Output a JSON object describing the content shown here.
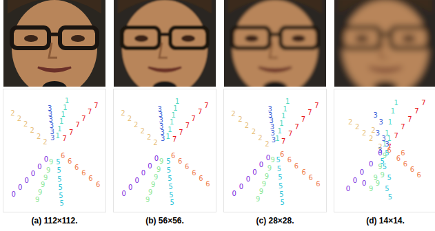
{
  "chart_data": [
    {
      "type": "scatter",
      "caption": "(a) 112×112.",
      "xlim": [
        -1.1,
        1.1
      ],
      "ylim": [
        -1.1,
        1.1
      ],
      "tick_labels": false,
      "grid": false,
      "marker": "text",
      "series": [
        {
          "name": "7",
          "color": "#e8141c",
          "x": [
            0.22,
            0.36,
            0.5,
            0.63,
            0.76,
            0.9
          ],
          "y": [
            0.2,
            0.32,
            0.45,
            0.56,
            0.68,
            0.8
          ]
        },
        {
          "name": "1",
          "color": "#4fd8c0",
          "x": [
            0.07,
            0.11,
            0.15,
            0.19,
            0.23,
            0.27
          ],
          "y": [
            0.25,
            0.38,
            0.51,
            0.64,
            0.76,
            0.88
          ]
        },
        {
          "name": "3",
          "color": "#3a5fd8",
          "x": [
            -0.04,
            -0.05,
            -0.06,
            -0.08,
            -0.09,
            -0.1
          ],
          "y": [
            0.22,
            0.33,
            0.44,
            0.55,
            0.65,
            0.75
          ]
        },
        {
          "name": "2",
          "color": "#e8c07a",
          "x": [
            -0.2,
            -0.34,
            -0.48,
            -0.62,
            -0.76,
            -0.9
          ],
          "y": [
            0.14,
            0.24,
            0.35,
            0.46,
            0.56,
            0.66
          ]
        },
        {
          "name": "0",
          "color": "#7a2be0",
          "x": [
            -0.18,
            -0.32,
            -0.46,
            -0.6,
            -0.74,
            -0.88
          ],
          "y": [
            -0.17,
            -0.3,
            -0.43,
            -0.55,
            -0.67,
            -0.8
          ]
        },
        {
          "name": "9",
          "color": "#8ee89a",
          "x": [
            -0.07,
            -0.13,
            -0.19,
            -0.25,
            -0.31,
            -0.37
          ],
          "y": [
            -0.22,
            -0.36,
            -0.5,
            -0.63,
            -0.76,
            -0.9
          ]
        },
        {
          "name": "5",
          "color": "#2ec4d8",
          "x": [
            0.08,
            0.1,
            0.11,
            0.13,
            0.14,
            0.16
          ],
          "y": [
            -0.22,
            -0.37,
            -0.52,
            -0.67,
            -0.82,
            -0.96
          ]
        },
        {
          "name": "6",
          "color": "#f08050",
          "x": [
            0.18,
            0.33,
            0.48,
            0.63,
            0.78,
            0.94
          ],
          "y": [
            -0.1,
            -0.2,
            -0.31,
            -0.41,
            -0.51,
            -0.62
          ]
        }
      ]
    },
    {
      "type": "scatter",
      "caption": "(b) 56×56.",
      "xlim": [
        -1.1,
        1.1
      ],
      "ylim": [
        -1.1,
        1.1
      ],
      "tick_labels": false,
      "grid": false,
      "marker": "text",
      "series": [
        {
          "name": "7",
          "color": "#e8141c",
          "x": [
            0.21,
            0.35,
            0.49,
            0.62,
            0.76,
            0.9
          ],
          "y": [
            0.19,
            0.31,
            0.44,
            0.56,
            0.68,
            0.8
          ]
        },
        {
          "name": "1",
          "color": "#4fd8c0",
          "x": [
            0.07,
            0.11,
            0.15,
            0.19,
            0.23,
            0.27
          ],
          "y": [
            0.24,
            0.37,
            0.5,
            0.63,
            0.75,
            0.87
          ]
        },
        {
          "name": "3",
          "color": "#3a5fd8",
          "x": [
            -0.04,
            -0.05,
            -0.07,
            -0.08,
            -0.09,
            -0.11
          ],
          "y": [
            0.21,
            0.32,
            0.43,
            0.54,
            0.64,
            0.74
          ]
        },
        {
          "name": "2",
          "color": "#e8c07a",
          "x": [
            -0.2,
            -0.34,
            -0.48,
            -0.62,
            -0.76,
            -0.9
          ],
          "y": [
            0.13,
            0.23,
            0.34,
            0.45,
            0.56,
            0.66
          ]
        },
        {
          "name": "0",
          "color": "#7a2be0",
          "x": [
            -0.18,
            -0.32,
            -0.46,
            -0.6,
            -0.74,
            -0.88
          ],
          "y": [
            -0.16,
            -0.29,
            -0.42,
            -0.55,
            -0.67,
            -0.79
          ]
        },
        {
          "name": "9",
          "color": "#8ee89a",
          "x": [
            -0.07,
            -0.13,
            -0.19,
            -0.25,
            -0.31,
            -0.37
          ],
          "y": [
            -0.21,
            -0.35,
            -0.49,
            -0.63,
            -0.76,
            -0.89
          ]
        },
        {
          "name": "5",
          "color": "#2ec4d8",
          "x": [
            0.08,
            0.09,
            0.11,
            0.13,
            0.14,
            0.16
          ],
          "y": [
            -0.21,
            -0.36,
            -0.51,
            -0.66,
            -0.81,
            -0.95
          ]
        },
        {
          "name": "6",
          "color": "#f08050",
          "x": [
            0.18,
            0.33,
            0.48,
            0.63,
            0.78,
            0.93
          ],
          "y": [
            -0.1,
            -0.2,
            -0.3,
            -0.41,
            -0.51,
            -0.61
          ]
        }
      ]
    },
    {
      "type": "scatter",
      "caption": "(c) 28×28.",
      "xlim": [
        -1.1,
        1.1
      ],
      "ylim": [
        -1.1,
        1.1
      ],
      "tick_labels": false,
      "grid": false,
      "marker": "text",
      "series": [
        {
          "name": "7",
          "color": "#e8141c",
          "x": [
            0.18,
            0.33,
            0.47,
            0.61,
            0.75,
            0.9
          ],
          "y": [
            0.16,
            0.29,
            0.42,
            0.55,
            0.67,
            0.8
          ]
        },
        {
          "name": "1",
          "color": "#4fd8c0",
          "x": [
            0.05,
            0.1,
            0.14,
            0.18,
            0.22,
            0.27
          ],
          "y": [
            0.2,
            0.34,
            0.48,
            0.61,
            0.74,
            0.87
          ]
        },
        {
          "name": "3",
          "color": "#3a5fd8",
          "x": [
            -0.03,
            -0.05,
            -0.06,
            -0.08,
            -0.1,
            -0.11
          ],
          "y": [
            0.18,
            0.3,
            0.41,
            0.52,
            0.63,
            0.73
          ]
        },
        {
          "name": "2",
          "color": "#e8c07a",
          "x": [
            -0.17,
            -0.32,
            -0.46,
            -0.61,
            -0.75,
            -0.9
          ],
          "y": [
            0.11,
            0.22,
            0.33,
            0.44,
            0.55,
            0.65
          ]
        },
        {
          "name": "0",
          "color": "#7a2be0",
          "x": [
            -0.15,
            -0.3,
            -0.44,
            -0.58,
            -0.73,
            -0.88
          ],
          "y": [
            -0.14,
            -0.27,
            -0.4,
            -0.53,
            -0.66,
            -0.79
          ]
        },
        {
          "name": "9",
          "color": "#8ee89a",
          "x": [
            -0.05,
            -0.12,
            -0.18,
            -0.24,
            -0.3,
            -0.37
          ],
          "y": [
            -0.18,
            -0.33,
            -0.47,
            -0.61,
            -0.75,
            -0.88
          ]
        },
        {
          "name": "5",
          "color": "#2ec4d8",
          "x": [
            0.07,
            0.09,
            0.11,
            0.12,
            0.14,
            0.16
          ],
          "y": [
            -0.18,
            -0.34,
            -0.49,
            -0.65,
            -0.8,
            -0.95
          ]
        },
        {
          "name": "6",
          "color": "#f08050",
          "x": [
            0.15,
            0.31,
            0.46,
            0.62,
            0.77,
            0.93
          ],
          "y": [
            -0.08,
            -0.18,
            -0.29,
            -0.4,
            -0.5,
            -0.61
          ]
        }
      ]
    },
    {
      "type": "scatter",
      "caption": "(d) 14×14.",
      "xlim": [
        -1.1,
        1.1
      ],
      "ylim": [
        -1.1,
        1.1
      ],
      "tick_labels": false,
      "grid": false,
      "marker": "text",
      "series": [
        {
          "name": "7",
          "color": "#e8141c",
          "x": [
            0.1,
            0.25,
            0.4,
            0.55,
            0.7,
            0.85
          ],
          "y": [
            0.05,
            0.25,
            0.42,
            0.55,
            0.7,
            0.85
          ]
        },
        {
          "name": "1",
          "color": "#4fd8c0",
          "x": [
            0.0,
            0.05,
            0.12,
            0.18,
            0.1,
            0.25
          ],
          "y": [
            0.1,
            0.3,
            0.5,
            0.7,
            0.2,
            0.85
          ]
        },
        {
          "name": "3",
          "color": "#3a5fd8",
          "x": [
            -0.1,
            -0.02,
            -0.15,
            -0.08,
            0.05,
            -0.2
          ],
          "y": [
            0.0,
            0.2,
            0.3,
            0.5,
            0.1,
            0.62
          ]
        },
        {
          "name": "2",
          "color": "#e8c07a",
          "x": [
            -0.1,
            -0.3,
            -0.45,
            -0.6,
            -0.25,
            -0.75
          ],
          "y": [
            0.05,
            0.2,
            0.3,
            0.42,
            0.35,
            0.5
          ]
        },
        {
          "name": "0",
          "color": "#7a2be0",
          "x": [
            -0.1,
            -0.3,
            -0.5,
            -0.65,
            -0.8,
            -0.45
          ],
          "y": [
            -0.05,
            -0.25,
            -0.4,
            -0.55,
            -0.7,
            -0.6
          ]
        },
        {
          "name": "9",
          "color": "#8ee89a",
          "x": [
            0.0,
            -0.1,
            -0.2,
            -0.3,
            -0.15,
            -0.05
          ],
          "y": [
            -0.1,
            -0.3,
            -0.5,
            -0.7,
            -0.6,
            -0.45
          ]
        },
        {
          "name": "5",
          "color": "#2ec4d8",
          "x": [
            0.05,
            0.0,
            0.1,
            0.05,
            0.12,
            -0.05
          ],
          "y": [
            -0.05,
            -0.3,
            -0.5,
            -0.7,
            -0.85,
            -0.2
          ]
        },
        {
          "name": "6",
          "color": "#f08050",
          "x": [
            0.1,
            0.3,
            0.45,
            0.6,
            0.75,
            0.4
          ],
          "y": [
            0.0,
            -0.15,
            -0.25,
            -0.35,
            -0.45,
            -0.05
          ]
        }
      ]
    }
  ]
}
